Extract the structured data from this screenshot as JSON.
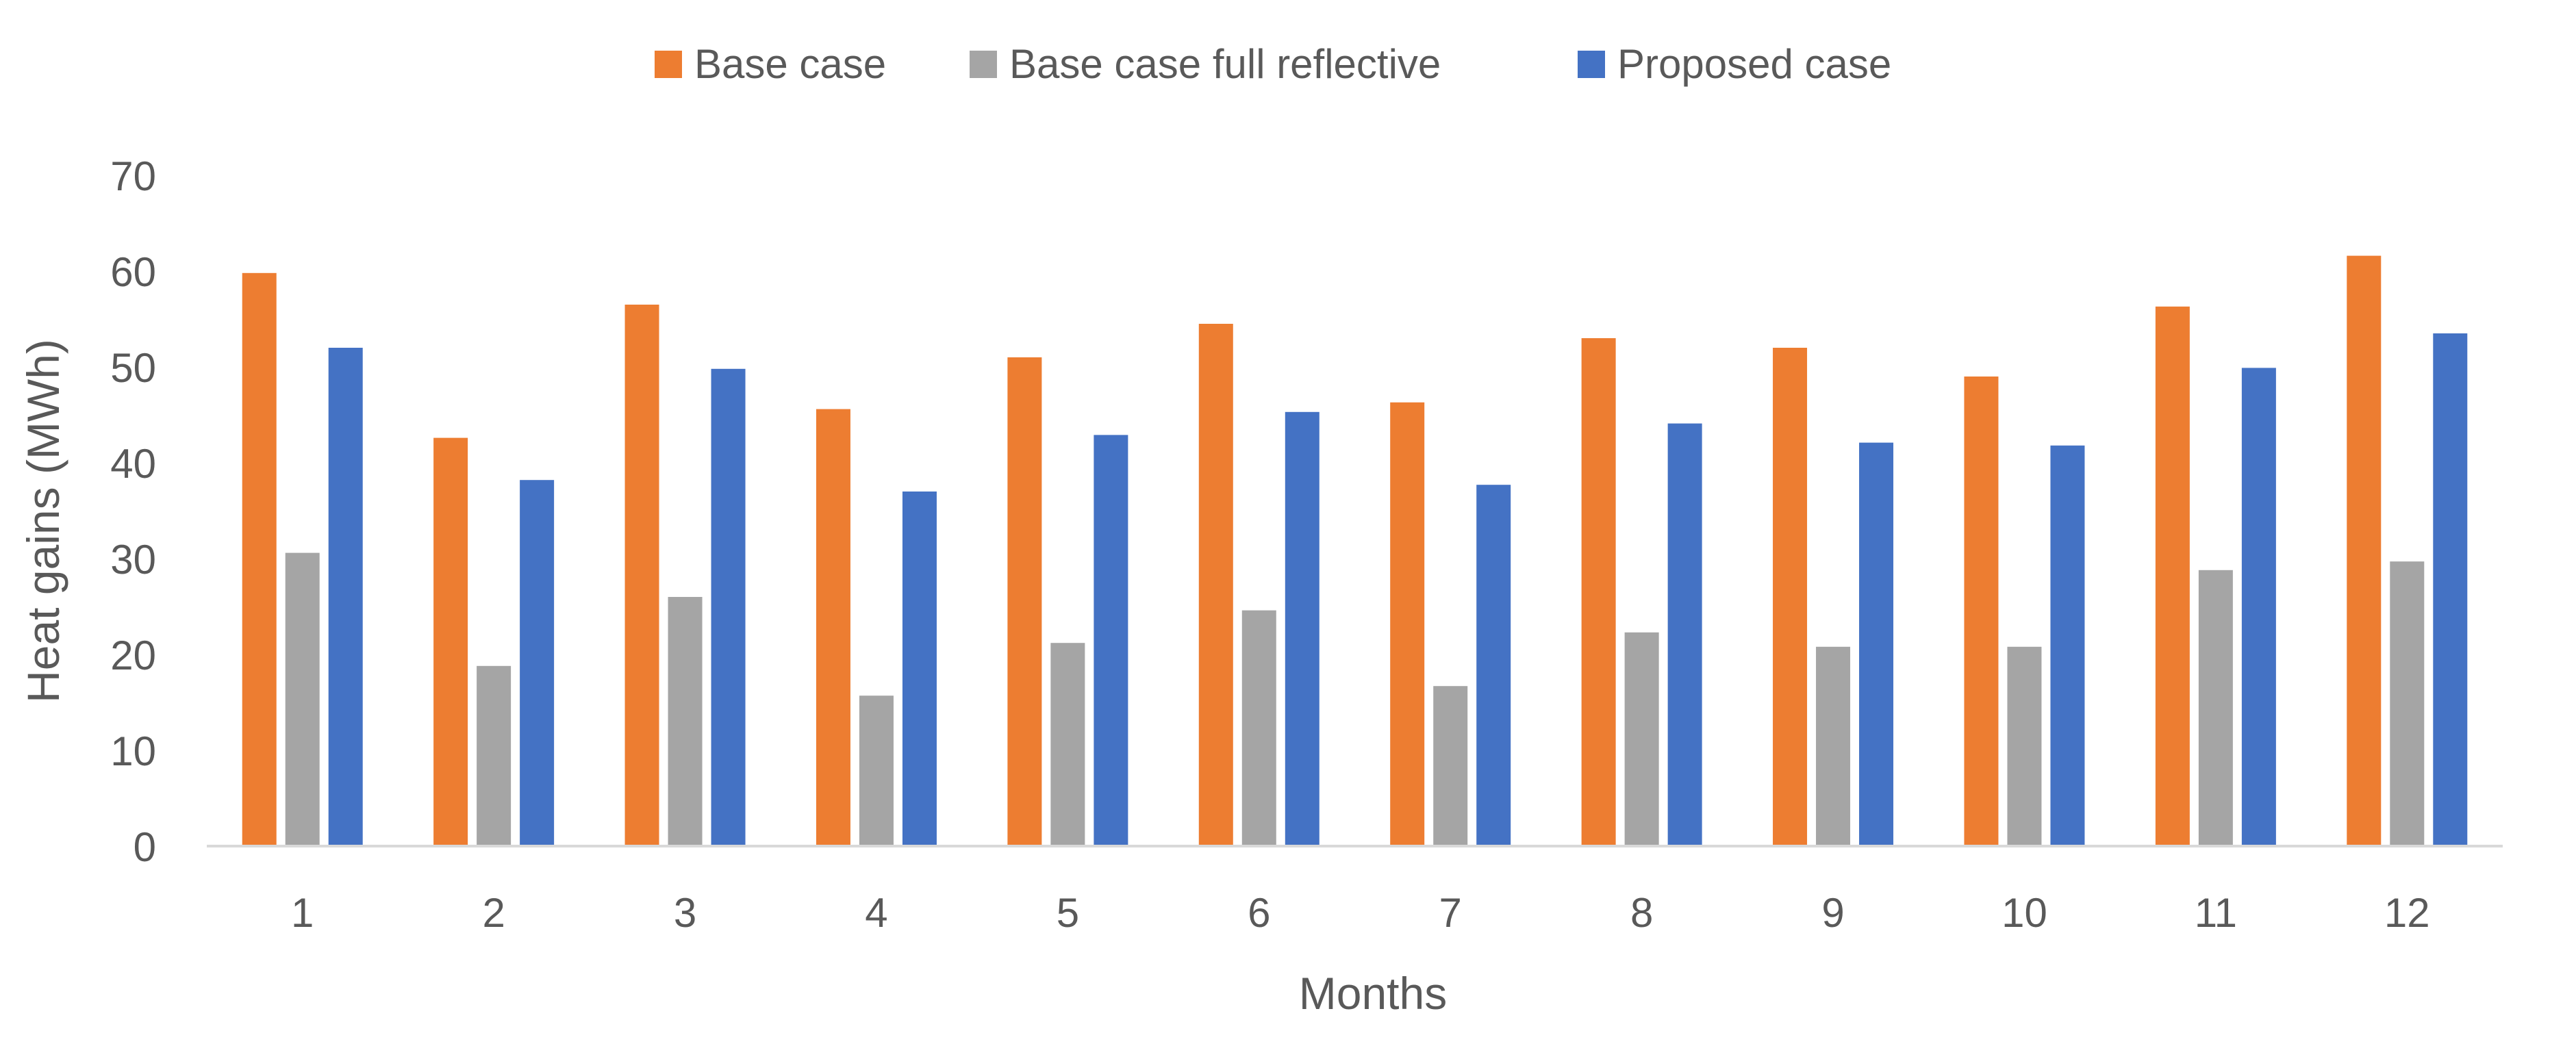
{
  "chart_data": {
    "type": "bar",
    "title": "",
    "xlabel": "Months",
    "ylabel": "Heat gains (MWh)",
    "categories": [
      "1",
      "2",
      "3",
      "4",
      "5",
      "6",
      "7",
      "8",
      "9",
      "10",
      "11",
      "12"
    ],
    "ylim": [
      0,
      70
    ],
    "yticks": [
      0,
      10,
      20,
      30,
      40,
      50,
      60,
      70
    ],
    "grid": false,
    "legend_position": "top-center",
    "series": [
      {
        "name": "Base case",
        "color": "#ED7D31",
        "values": [
          59.8,
          42.6,
          56.5,
          45.6,
          51.0,
          54.5,
          46.3,
          53.0,
          52.0,
          49.0,
          56.3,
          61.6
        ]
      },
      {
        "name": "Base case full reflective",
        "color": "#A5A5A5",
        "values": [
          30.6,
          18.8,
          26.0,
          15.7,
          21.2,
          24.6,
          16.7,
          22.3,
          20.8,
          20.8,
          28.8,
          29.7
        ]
      },
      {
        "name": "Proposed case",
        "color": "#4472C4",
        "values": [
          52.0,
          38.2,
          49.8,
          37.0,
          42.9,
          45.3,
          37.7,
          44.1,
          42.1,
          41.8,
          49.9,
          53.5
        ]
      }
    ]
  }
}
